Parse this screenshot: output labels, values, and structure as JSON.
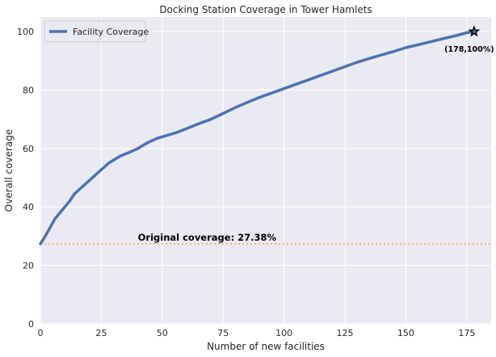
{
  "chart_data": {
    "type": "line",
    "title": "Docking Station Coverage in Tower Hamlets",
    "xlabel": "Number of new facilities",
    "ylabel": "Overall coverage",
    "xlim": [
      0,
      185
    ],
    "ylim": [
      0,
      105
    ],
    "x_ticks": [
      0,
      25,
      50,
      75,
      100,
      125,
      150,
      175
    ],
    "y_ticks": [
      0,
      20,
      40,
      60,
      80,
      100
    ],
    "grid": true,
    "legend_position": "top-left",
    "colors": {
      "background": "#eaeaf2",
      "grid": "#ffffff",
      "series": "#4c72b0",
      "reference_line": "#f0a830",
      "marker": "#000000"
    },
    "series": [
      {
        "name": "Facility Coverage",
        "x": [
          0,
          2,
          4,
          6,
          8,
          10,
          12,
          14,
          16,
          18,
          20,
          22,
          24,
          26,
          28,
          30,
          33,
          36,
          40,
          44,
          48,
          52,
          56,
          60,
          65,
          70,
          75,
          80,
          85,
          90,
          95,
          100,
          105,
          110,
          115,
          120,
          125,
          130,
          135,
          140,
          145,
          150,
          155,
          160,
          165,
          170,
          175,
          178
        ],
        "values": [
          27.38,
          30.0,
          33.0,
          36.0,
          38.0,
          40.0,
          42.0,
          44.5,
          46.0,
          47.5,
          49.0,
          50.5,
          52.0,
          53.5,
          55.0,
          56.0,
          57.5,
          58.5,
          60.0,
          62.0,
          63.5,
          64.5,
          65.5,
          66.8,
          68.5,
          70.0,
          72.0,
          74.0,
          75.8,
          77.5,
          79.0,
          80.5,
          82.0,
          83.5,
          85.0,
          86.5,
          88.0,
          89.5,
          90.8,
          92.0,
          93.2,
          94.5,
          95.5,
          96.5,
          97.5,
          98.5,
          99.6,
          100.0
        ]
      }
    ],
    "reference_line": {
      "y": 27.38,
      "label": "Original coverage: 27.38%"
    },
    "end_point": {
      "x": 178,
      "y": 100,
      "label": "(178,100%)"
    }
  }
}
